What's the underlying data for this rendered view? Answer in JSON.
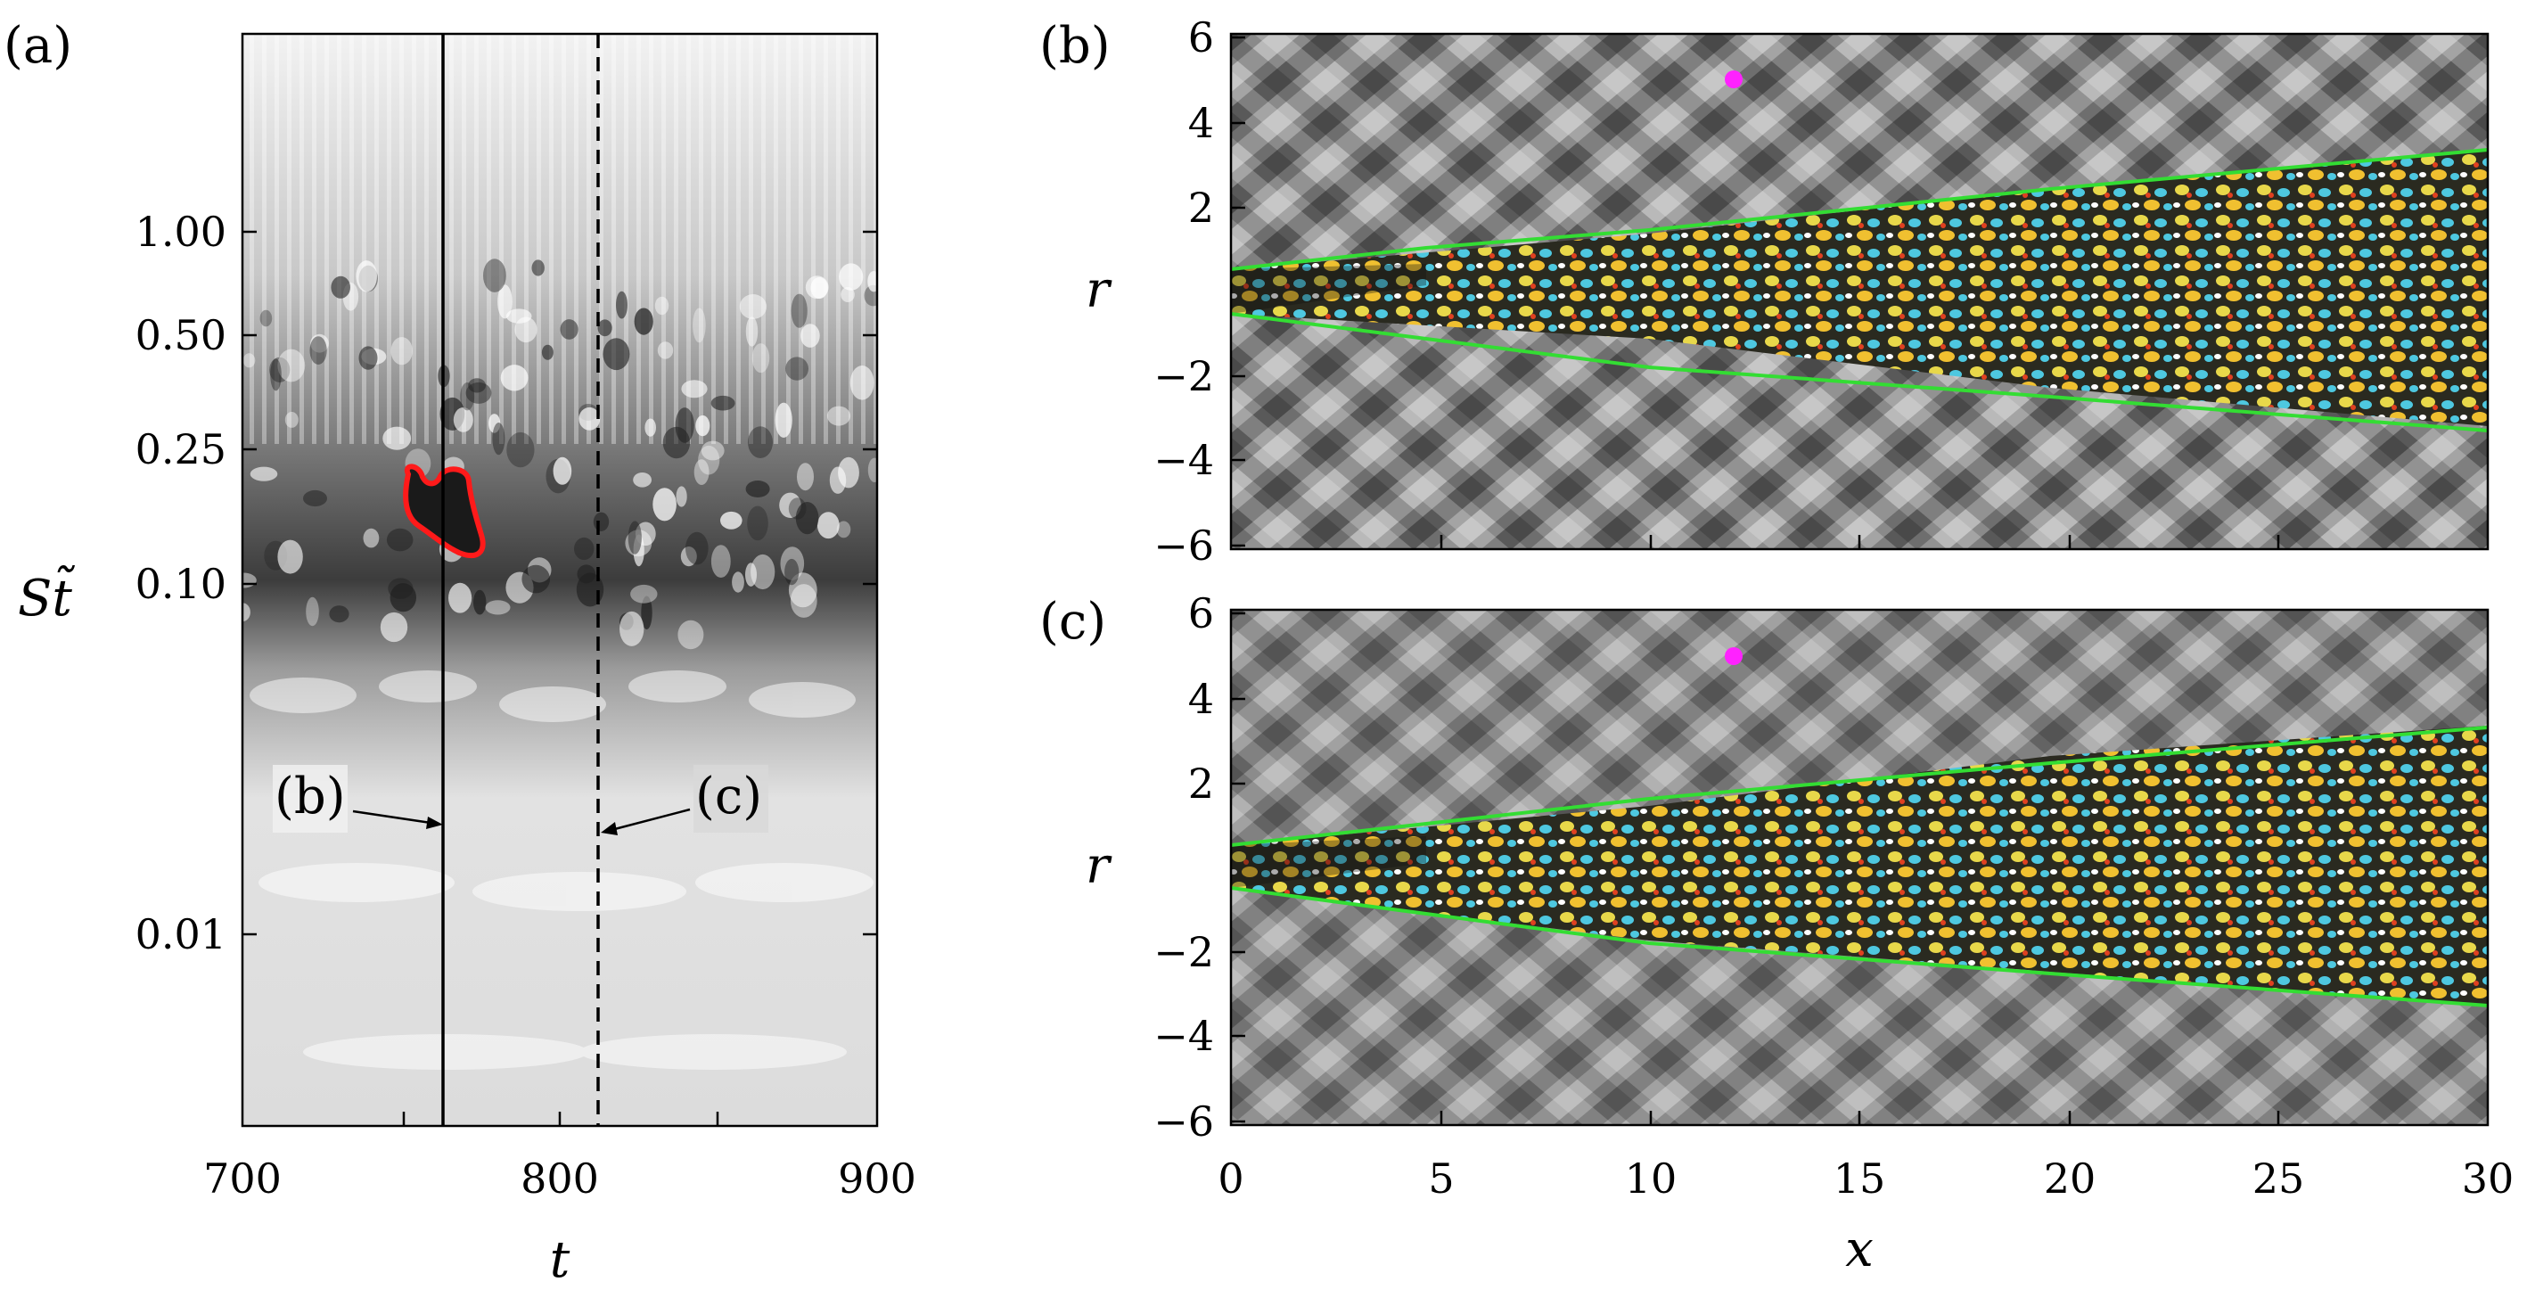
{
  "panel_a": {
    "label": "(a)",
    "xlabel": "t",
    "ylabel": "St̃",
    "xticks": [
      "700",
      "800",
      "900"
    ],
    "yticks": [
      "1.00",
      "0.50",
      "0.25",
      "0.10",
      "0.01"
    ],
    "marker_b": "(b)",
    "marker_c": "(c)"
  },
  "panel_b": {
    "label": "(b)",
    "ylabel": "r",
    "yticks": [
      "6",
      "4",
      "2",
      "−2",
      "−4",
      "−6"
    ]
  },
  "panel_c": {
    "label": "(c)",
    "ylabel": "r",
    "xlabel": "x",
    "yticks": [
      "6",
      "4",
      "2",
      "−2",
      "−4",
      "−6"
    ],
    "xticks": [
      "0",
      "5",
      "10",
      "15",
      "20",
      "25",
      "30"
    ]
  },
  "colors": {
    "highlight_contour": "#ff1a1a",
    "shear_layer_lines": "#33dd33",
    "probe_point": "#ff22ff",
    "positive_contour": "#e8d84a",
    "negative_contour": "#4ec8e0"
  },
  "chart_data": [
    {
      "type": "heatmap",
      "title": "",
      "xlabel": "t",
      "ylabel": "St̃",
      "xlim": [
        700,
        900
      ],
      "ylim": [
        0.003,
        3.0
      ],
      "yscale": "log",
      "x_ticks": [
        700,
        800,
        900
      ],
      "y_ticks": [
        0.01,
        0.1,
        0.25,
        0.5,
        1.0
      ],
      "annotations": [
        {
          "label": "(b)",
          "t": 762,
          "style": "solid"
        },
        {
          "label": "(c)",
          "t": 812,
          "style": "dashed"
        }
      ],
      "highlight_region": {
        "color": "red",
        "t_range": [
          751,
          774
        ],
        "st_range": [
          0.13,
          0.22
        ]
      }
    },
    {
      "type": "heatmap",
      "title": "",
      "xlabel": "",
      "ylabel": "r",
      "xlim": [
        0,
        30
      ],
      "ylim": [
        -6,
        6
      ],
      "y_ticks": [
        -6,
        -4,
        -2,
        2,
        4,
        6
      ],
      "probe_point": {
        "x": 12.0,
        "r": 5.0
      },
      "shear_layer_lines": [
        {
          "x": [
            0,
            2,
            10,
            20,
            30
          ],
          "r": [
            0.5,
            0.6,
            1.7,
            2.6,
            3.3
          ]
        },
        {
          "x": [
            0,
            2,
            10,
            20,
            30
          ],
          "r": [
            -0.5,
            -0.6,
            -1.6,
            -2.4,
            -3.3
          ]
        }
      ]
    },
    {
      "type": "heatmap",
      "title": "",
      "xlabel": "x",
      "ylabel": "r",
      "xlim": [
        0,
        30
      ],
      "ylim": [
        -6,
        6
      ],
      "x_ticks": [
        0,
        5,
        10,
        15,
        20,
        25,
        30
      ],
      "y_ticks": [
        -6,
        -4,
        -2,
        2,
        4,
        6
      ],
      "probe_point": {
        "x": 12.0,
        "r": 5.0
      },
      "shear_layer_lines": [
        {
          "x": [
            0,
            2,
            10,
            20,
            30
          ],
          "r": [
            0.5,
            0.6,
            1.7,
            2.6,
            3.3
          ]
        },
        {
          "x": [
            0,
            2,
            10,
            20,
            30
          ],
          "r": [
            -0.5,
            -0.6,
            -1.6,
            -2.4,
            -3.3
          ]
        }
      ]
    }
  ]
}
